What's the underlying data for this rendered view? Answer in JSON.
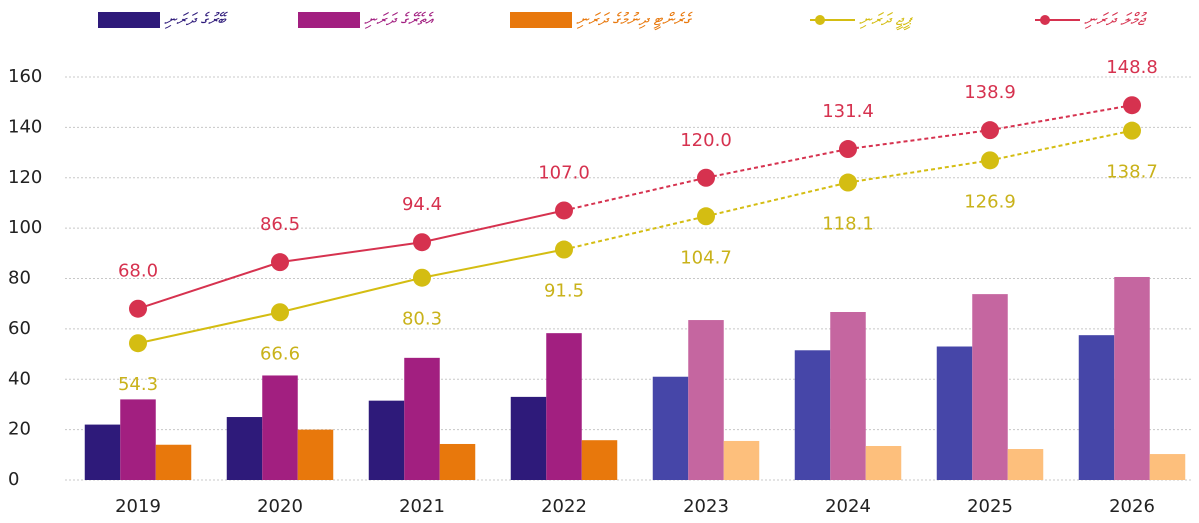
{
  "chart_data": {
    "type": "bar_line",
    "categories": [
      "2019",
      "2020",
      "2021",
      "2022",
      "2023",
      "2024",
      "2025",
      "2026"
    ],
    "ylim": [
      0,
      160
    ],
    "yticks": [
      0,
      20,
      40,
      60,
      80,
      100,
      120,
      140,
      160
    ],
    "grid": true,
    "legend": "top",
    "series": [
      {
        "name": "ބޭރުގެ ދަރަނި",
        "kind": "bar",
        "color": "#2e1a7a",
        "colors": [
          "#2e1a7a",
          "#2e1a7a",
          "#2e1a7a",
          "#2e1a7a",
          "#4646a8",
          "#4646a8",
          "#4646a8",
          "#4646a8"
        ],
        "values": [
          22,
          25,
          31.5,
          33,
          41,
          51.5,
          53,
          57.5
        ]
      },
      {
        "name": "އެތެރޭގެ ދަރަނި",
        "kind": "bar",
        "color": "#a21f80",
        "colors": [
          "#a21f80",
          "#a21f80",
          "#a21f80",
          "#a21f80",
          "#c566a0",
          "#c566a0",
          "#c566a0",
          "#c566a0"
        ],
        "values": [
          32,
          41.5,
          48.5,
          58.3,
          63.5,
          66.7,
          73.8,
          80.6
        ]
      },
      {
        "name": "ގެރެންޓީ ދިނުމުގެ ދަރަނި",
        "kind": "bar",
        "color": "#e8780c",
        "colors": [
          "#e8780c",
          "#e8780c",
          "#e8780c",
          "#e8780c",
          "#fdbf7c",
          "#fdbf7c",
          "#fdbf7c",
          "#fdbf7c"
        ],
        "values": [
          14,
          20,
          14.3,
          15.8,
          15.5,
          13.5,
          12.3,
          10.3
        ]
      },
      {
        "name": "ޕީޖީ ދަރަނި",
        "kind": "line",
        "color": "#d4bd12",
        "label_color": "#c9b21a",
        "label_position": "below",
        "dashed": [
          false,
          false,
          false,
          false,
          true,
          true,
          true,
          true
        ],
        "values": [
          54.3,
          66.6,
          80.3,
          91.5,
          104.7,
          118.1,
          126.9,
          138.7
        ],
        "value_labels": [
          "54.3",
          "66.6",
          "80.3",
          "91.5",
          "104.7",
          "118.1",
          "126.9",
          "138.7"
        ]
      },
      {
        "name": "ޖުމްލަ ދަރަނި",
        "kind": "line",
        "color": "#d6324f",
        "label_color": "#d6324f",
        "label_position": "above",
        "dashed": [
          false,
          false,
          false,
          false,
          true,
          true,
          true,
          true
        ],
        "values": [
          68.0,
          86.5,
          94.4,
          107.0,
          120.0,
          131.4,
          138.9,
          148.8
        ],
        "value_labels": [
          "68.0",
          "86.5",
          "94.4",
          "107.0",
          "120.0",
          "131.4",
          "138.9",
          "148.8"
        ]
      }
    ]
  }
}
